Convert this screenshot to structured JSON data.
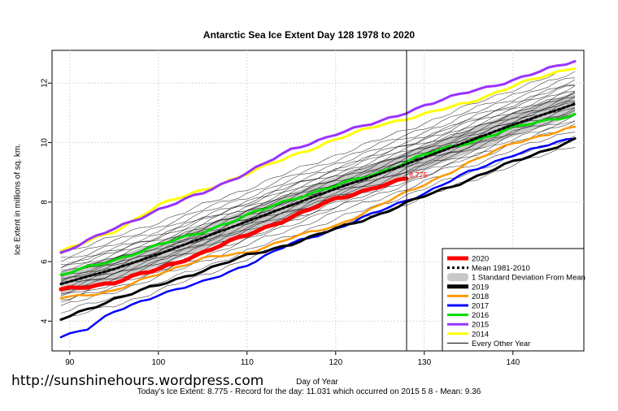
{
  "chart_data": {
    "type": "line",
    "title": "Antarctic Sea Ice Extent Day 128 1978 to 2020",
    "xlabel": "Day of Year",
    "ylabel": "Ice Extent in millions of sq. km.",
    "xlim": [
      88,
      148
    ],
    "ylim": [
      3.0,
      13.1
    ],
    "x_ticks": [
      90,
      100,
      110,
      120,
      130,
      140
    ],
    "y_ticks": [
      4,
      6,
      8,
      10,
      12
    ],
    "current_day": 128,
    "current_value_label": "8.775",
    "legend_position": "bottom-right",
    "grid": true,
    "legend": [
      {
        "label": "2020",
        "color": "#ff0000",
        "style": "thick"
      },
      {
        "label": "Mean 1981-2010",
        "color": "#000000",
        "style": "dotted"
      },
      {
        "label": "1 Standard Deviation From Mean",
        "color": "#c8c8c8",
        "style": "band"
      },
      {
        "label": "2019",
        "color": "#000000",
        "style": "thick"
      },
      {
        "label": "2018",
        "color": "#ff9900",
        "style": "medium"
      },
      {
        "label": "2017",
        "color": "#0000ff",
        "style": "medium"
      },
      {
        "label": "2016",
        "color": "#00dd00",
        "style": "medium"
      },
      {
        "label": "2015",
        "color": "#9933ff",
        "style": "medium"
      },
      {
        "label": "2014",
        "color": "#ffff00",
        "style": "medium"
      },
      {
        "label": "Every Other Year",
        "color": "#000000",
        "style": "thin"
      }
    ],
    "series": [
      {
        "name": "2020",
        "x": [
          89,
          95,
          100,
          105,
          110,
          115,
          120,
          125,
          128
        ],
        "values": [
          5.05,
          5.3,
          5.75,
          6.3,
          6.9,
          7.5,
          8.1,
          8.55,
          8.775
        ]
      },
      {
        "name": "Mean 1981-2010",
        "x": [
          89,
          95,
          100,
          105,
          110,
          115,
          120,
          125,
          130,
          135,
          140,
          147
        ],
        "values": [
          5.25,
          5.75,
          6.25,
          6.8,
          7.35,
          7.9,
          8.45,
          8.95,
          9.5,
          10.05,
          10.6,
          11.3
        ]
      },
      {
        "name": "2019",
        "x": [
          89,
          95,
          100,
          105,
          110,
          115,
          120,
          125,
          130,
          135,
          140,
          147
        ],
        "values": [
          4.05,
          4.75,
          5.2,
          5.7,
          6.2,
          6.6,
          7.1,
          7.6,
          8.2,
          8.75,
          9.35,
          10.1
        ]
      },
      {
        "name": "2018",
        "x": [
          89,
          95,
          100,
          105,
          110,
          115,
          120,
          125,
          130,
          135,
          140,
          147
        ],
        "values": [
          4.8,
          5.0,
          5.6,
          6.1,
          6.3,
          6.8,
          7.2,
          7.9,
          8.6,
          9.3,
          10.0,
          10.5
        ]
      },
      {
        "name": "2017",
        "x": [
          89,
          92,
          95,
          100,
          105,
          110,
          115,
          120,
          125,
          130,
          135,
          140,
          147
        ],
        "values": [
          3.5,
          3.75,
          4.3,
          4.9,
          5.3,
          5.9,
          6.6,
          7.1,
          7.7,
          8.3,
          9.0,
          9.6,
          10.15
        ]
      },
      {
        "name": "2016",
        "x": [
          89,
          95,
          100,
          105,
          110,
          115,
          120,
          125,
          130,
          135,
          140,
          147
        ],
        "values": [
          5.55,
          6.05,
          6.55,
          7.0,
          7.55,
          8.1,
          8.55,
          9.0,
          9.6,
          10.0,
          10.5,
          10.95
        ]
      },
      {
        "name": "2015",
        "x": [
          89,
          92,
          95,
          100,
          105,
          110,
          115,
          120,
          125,
          130,
          135,
          140,
          147
        ],
        "values": [
          6.3,
          6.7,
          7.1,
          7.75,
          8.3,
          9.0,
          9.75,
          10.3,
          10.7,
          11.25,
          11.7,
          12.1,
          12.75
        ]
      },
      {
        "name": "2014",
        "x": [
          89,
          95,
          100,
          105,
          110,
          115,
          120,
          125,
          130,
          135,
          140,
          147
        ],
        "values": [
          6.35,
          7.0,
          7.9,
          8.4,
          8.95,
          9.55,
          10.1,
          10.6,
          10.95,
          11.35,
          11.9,
          12.55
        ]
      }
    ]
  },
  "footer_text": "Today's Ice Extent: 8.775  - Record for the day: 11.031 which occurred on 2015 5 8  - Mean: 9.36",
  "watermark": "http://sunshinehours.wordpress.com"
}
